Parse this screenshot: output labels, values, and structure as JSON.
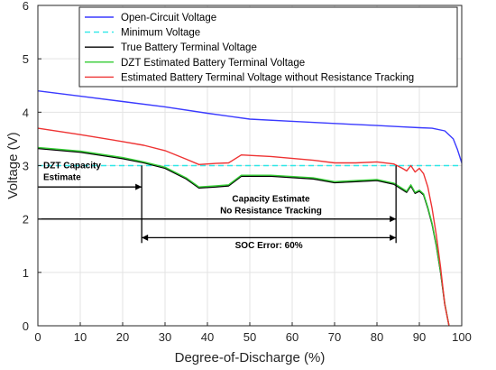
{
  "chart_data": {
    "type": "line",
    "xlabel": "Degree-of-Discharge (%)",
    "ylabel": "Voltage (V)",
    "xlim": [
      0,
      100
    ],
    "ylim": [
      0,
      6
    ],
    "xticks": [
      "0",
      "10",
      "20",
      "30",
      "40",
      "50",
      "60",
      "70",
      "80",
      "90",
      "100"
    ],
    "yticks": [
      "0",
      "1",
      "2",
      "3",
      "4",
      "5",
      "6"
    ],
    "grid": true,
    "legend_position": "top-right",
    "series": [
      {
        "name": "Open-Circuit Voltage",
        "color": "#3a3aff",
        "style": "solid",
        "x": [
          0,
          10,
          20,
          30,
          40,
          50,
          60,
          70,
          80,
          85,
          90,
          93,
          96,
          98,
          99,
          100
        ],
        "y": [
          4.4,
          4.3,
          4.2,
          4.1,
          3.98,
          3.87,
          3.83,
          3.79,
          3.75,
          3.73,
          3.71,
          3.7,
          3.65,
          3.5,
          3.3,
          3.05
        ]
      },
      {
        "name": "Minimum Voltage",
        "color": "#2ee8e8",
        "style": "dashed",
        "x": [
          0,
          100
        ],
        "y": [
          3.0,
          3.0
        ]
      },
      {
        "name": "True Battery Terminal Voltage",
        "color": "#000000",
        "style": "solid",
        "x": [
          0,
          10,
          20,
          25,
          30,
          35,
          38,
          42,
          45,
          48,
          55,
          65,
          70,
          75,
          80,
          84,
          86,
          87,
          88,
          89,
          90,
          91,
          92,
          93,
          94,
          95,
          96,
          97
        ],
        "y": [
          3.32,
          3.25,
          3.13,
          3.05,
          2.95,
          2.75,
          2.58,
          2.6,
          2.62,
          2.8,
          2.8,
          2.75,
          2.68,
          2.7,
          2.72,
          2.65,
          2.55,
          2.5,
          2.62,
          2.48,
          2.52,
          2.45,
          2.2,
          1.9,
          1.5,
          1.0,
          0.4,
          0.0
        ]
      },
      {
        "name": "DZT Estimated Battery Terminal Voltage",
        "color": "#33cc33",
        "style": "solid",
        "x": [
          0,
          10,
          20,
          25,
          30,
          35,
          38,
          42,
          45,
          48,
          55,
          65,
          70,
          75,
          80,
          84,
          86,
          87,
          88,
          89,
          90,
          91,
          92,
          93,
          94,
          95,
          96,
          97
        ],
        "y": [
          3.34,
          3.27,
          3.15,
          3.07,
          2.97,
          2.77,
          2.6,
          2.62,
          2.64,
          2.82,
          2.82,
          2.77,
          2.7,
          2.72,
          2.74,
          2.67,
          2.57,
          2.52,
          2.64,
          2.5,
          2.54,
          2.47,
          2.22,
          1.92,
          1.52,
          1.02,
          0.42,
          0.0
        ]
      },
      {
        "name": "Estimated Battery Terminal Voltage without Resistance Tracking",
        "color": "#ee3333",
        "style": "solid",
        "x": [
          0,
          10,
          20,
          25,
          30,
          35,
          38,
          42,
          45,
          48,
          55,
          65,
          70,
          75,
          80,
          84,
          86,
          87,
          88,
          89,
          90,
          91,
          92,
          93,
          94,
          95,
          96,
          97
        ],
        "y": [
          3.7,
          3.58,
          3.45,
          3.38,
          3.28,
          3.12,
          3.02,
          3.04,
          3.05,
          3.2,
          3.17,
          3.1,
          3.05,
          3.05,
          3.07,
          3.03,
          2.95,
          2.9,
          3.0,
          2.88,
          2.95,
          2.85,
          2.6,
          2.2,
          1.7,
          1.1,
          0.4,
          0.0
        ]
      }
    ],
    "annotations": [
      {
        "text_lines": [
          "DZT Capacity",
          "Estimate"
        ],
        "arrow_from_x": 0,
        "arrow_to_x": 24.5,
        "arrow_y": 2.6
      },
      {
        "text_lines": [
          "Capacity Estimate",
          "No Resistance Tracking"
        ],
        "arrow_from_x": 0,
        "arrow_to_x": 84.5,
        "arrow_y": 2.0
      },
      {
        "text_lines": [
          "SOC Error: 60%"
        ],
        "arrow_from_x": 24.5,
        "arrow_to_x": 84.5,
        "arrow_y": 1.65
      }
    ],
    "marker_lines_x": [
      24.5,
      84.5
    ]
  }
}
